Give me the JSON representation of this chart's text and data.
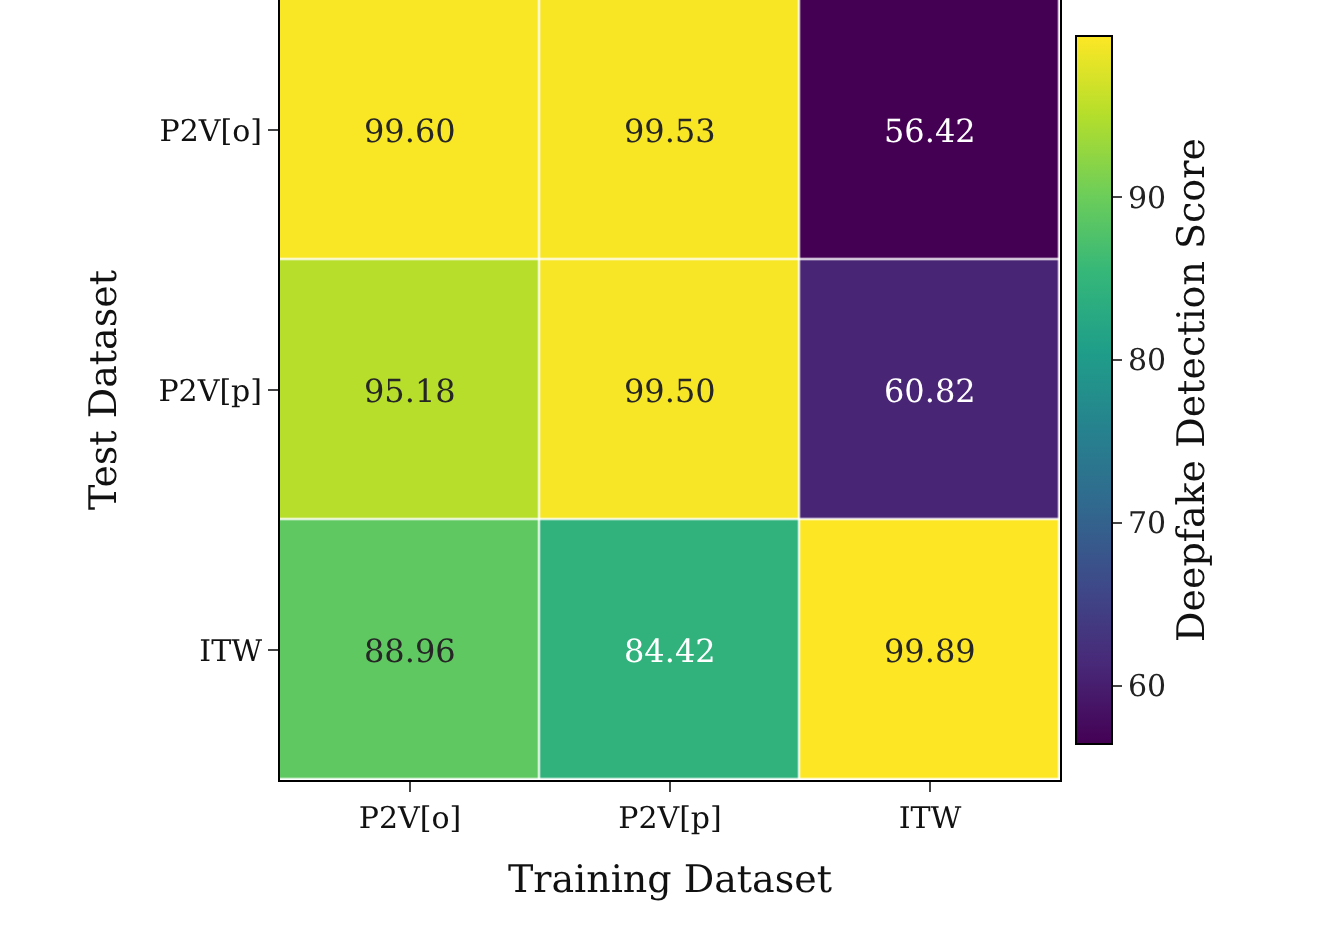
{
  "chart_data": {
    "type": "heatmap",
    "xlabel": "Training Dataset",
    "ylabel": "Test Dataset",
    "clabel": "Deepfake Detection Score",
    "categories": [
      "P2V[o]",
      "P2V[p]",
      "ITW"
    ],
    "y_categories": [
      "P2V[o]",
      "P2V[p]",
      "ITW"
    ],
    "cells": [
      [
        99.6,
        99.53,
        56.42
      ],
      [
        95.18,
        99.5,
        60.82
      ],
      [
        88.96,
        84.42,
        99.89
      ]
    ],
    "cell_labels": [
      [
        "99.60",
        "99.53",
        "56.42"
      ],
      [
        "95.18",
        "99.50",
        "60.82"
      ],
      [
        "88.96",
        "84.42",
        "99.89"
      ]
    ],
    "clim": [
      56.42,
      99.89
    ],
    "cticks": [
      60,
      70,
      80,
      90
    ],
    "data_labels": true
  }
}
